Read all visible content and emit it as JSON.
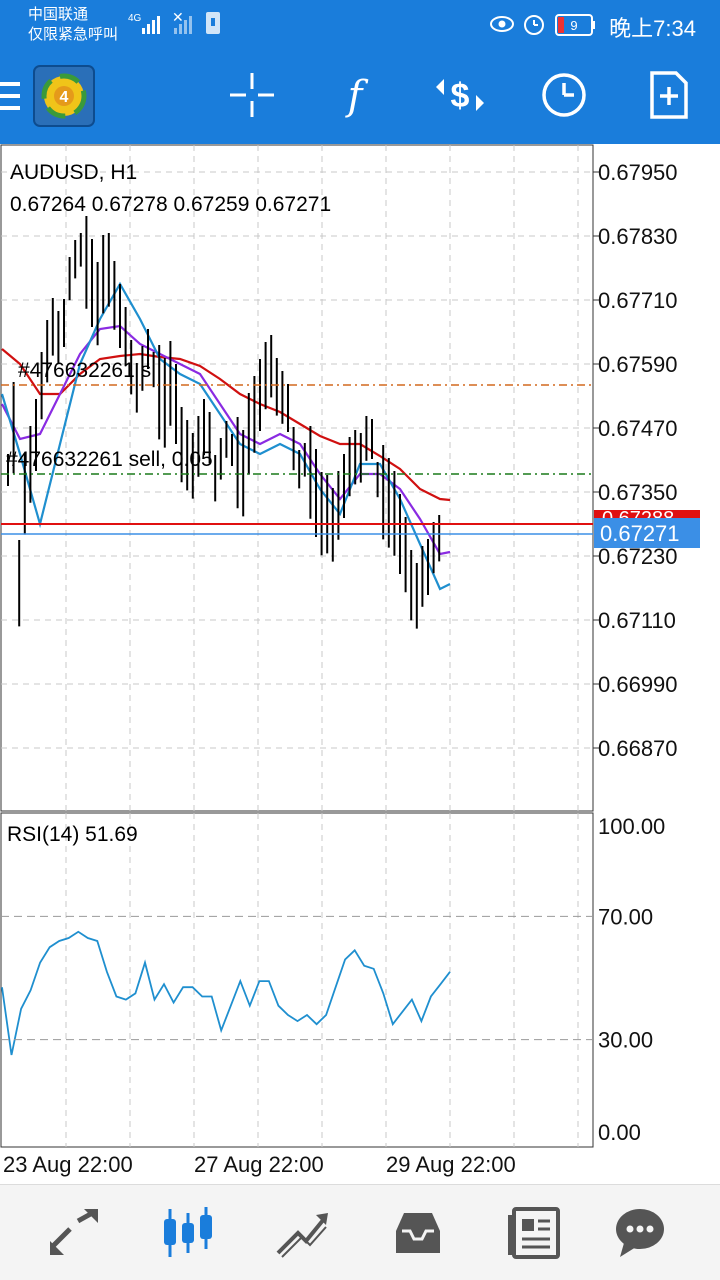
{
  "status_bar": {
    "carrier_line1": "中国联通",
    "carrier_line2": "仅限紧急呼叫",
    "network": "4G",
    "battery": "9",
    "time": "晚上7:34",
    "icons": [
      "eye-icon",
      "alarm-icon",
      "battery-icon"
    ]
  },
  "toolbar": {
    "menu_icon": "hamburger-menu-icon",
    "logo_icon": "metatrader-logo-icon",
    "buttons": [
      "crosshair-icon",
      "indicators-icon",
      "symbol-settings-icon",
      "timeframe-clock-icon",
      "new-order-icon"
    ]
  },
  "chart": {
    "symbol": "AUDUSD, H1",
    "ohlc": "0.67264 0.67278 0.67259 0.67271",
    "price_labels": [
      "0.67950",
      "0.67830",
      "0.67710",
      "0.67590",
      "0.67470",
      "0.67350",
      "0.67230",
      "0.67110",
      "0.66990",
      "0.66870"
    ],
    "current_price": "0.67271",
    "red_line_label": "0.67288",
    "order_label_buy": "#476632261 s",
    "order_label_sell": "#476632261 sell, 0.05",
    "rsi_title": "RSI(14) 51.69",
    "rsi_labels": [
      "100.00",
      "70.00",
      "30.00",
      "0.00"
    ],
    "time_labels": [
      "23 Aug 22:00",
      "27 Aug 22:00",
      "29 Aug 22:00"
    ],
    "colors": {
      "bull_bear_bars": "#000000",
      "ma_fast": "#1f8fcf",
      "ma_mid": "#8a2be2",
      "ma_slow": "#d01010",
      "order_line_orange": "#d2691e",
      "order_line_green": "#1a7a1a",
      "current_price_bg": "#3b8fe6",
      "red_line": "#e01010",
      "grid": "#c8c8c8"
    }
  },
  "chart_data": {
    "type": "line",
    "series": [
      {
        "name": "RSI(14)",
        "values": [
          47,
          25,
          40,
          46,
          55,
          60,
          62,
          63,
          65,
          63,
          62,
          52,
          44,
          43,
          45,
          55,
          43,
          48,
          42,
          47,
          47,
          44,
          44,
          33,
          41,
          49,
          41,
          49,
          49,
          41,
          38,
          36,
          38,
          35,
          38,
          47,
          56,
          59,
          54,
          53,
          45,
          35,
          39,
          43,
          36,
          44,
          48,
          52
        ]
      }
    ],
    "ylim": [
      0,
      100
    ],
    "reference_lines": [
      70,
      30
    ]
  },
  "bottom_nav": {
    "items": [
      "quotes-icon",
      "chart-icon",
      "trade-icon",
      "history-icon",
      "news-icon",
      "chat-icon"
    ],
    "active": "chart-icon"
  }
}
